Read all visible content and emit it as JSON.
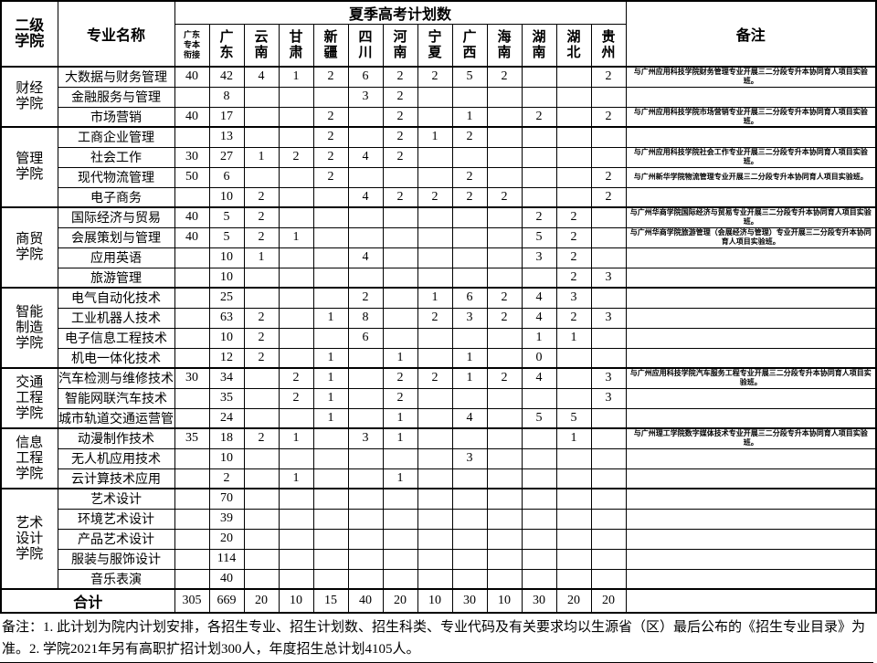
{
  "header": {
    "college_col": "二级学院",
    "major_col": "专业名称",
    "plan_group": "夏季高考计划数",
    "remark_col": "备注",
    "province_cols": [
      "广东专本衔接",
      "广东",
      "云南",
      "甘肃",
      "新疆",
      "四川",
      "河南",
      "宁夏",
      "广西",
      "海南",
      "湖南",
      "湖北",
      "贵州"
    ]
  },
  "colleges": [
    {
      "name": "财经学院",
      "majors": [
        {
          "name": "大数据与财务管理",
          "values": [
            "40",
            "42",
            "4",
            "1",
            "2",
            "6",
            "2",
            "2",
            "5",
            "2",
            "",
            "",
            "2"
          ],
          "remark": "与广州应用科技学院财务管理专业开展三二分段专升本协同育人项目实验班。"
        },
        {
          "name": "金融服务与管理",
          "values": [
            "",
            "8",
            "",
            "",
            "",
            "3",
            "2",
            "",
            "",
            "",
            "",
            "",
            ""
          ],
          "remark": ""
        },
        {
          "name": "市场营销",
          "values": [
            "40",
            "17",
            "",
            "",
            "2",
            "",
            "2",
            "",
            "1",
            "",
            "2",
            "",
            "2"
          ],
          "remark": "与广州应用科技学院市场营销专业开展三二分段专升本协同育人项目实验班。"
        }
      ]
    },
    {
      "name": "管理学院",
      "majors": [
        {
          "name": "工商企业管理",
          "values": [
            "",
            "13",
            "",
            "",
            "2",
            "",
            "2",
            "1",
            "2",
            "",
            "",
            "",
            ""
          ],
          "remark": ""
        },
        {
          "name": "社会工作",
          "values": [
            "30",
            "27",
            "1",
            "2",
            "2",
            "4",
            "2",
            "",
            "",
            "",
            "",
            "",
            ""
          ],
          "remark": "与广州应用科技学院社会工作专业开展三二分段专升本协同育人项目实验班。"
        },
        {
          "name": "现代物流管理",
          "values": [
            "50",
            "6",
            "",
            "",
            "2",
            "",
            "",
            "",
            "2",
            "",
            "",
            "",
            "2"
          ],
          "remark": "与广州新华学院物流管理专业开展三二分段专升本协同育人项目实验班。"
        },
        {
          "name": "电子商务",
          "values": [
            "",
            "10",
            "2",
            "",
            "",
            "4",
            "2",
            "2",
            "2",
            "2",
            "",
            "",
            "2"
          ],
          "remark": ""
        }
      ]
    },
    {
      "name": "商贸学院",
      "majors": [
        {
          "name": "国际经济与贸易",
          "values": [
            "40",
            "5",
            "2",
            "",
            "",
            "",
            "",
            "",
            "",
            "",
            "2",
            "2",
            ""
          ],
          "remark": "与广州华商学院国际经济与贸易专业开展三二分段专升本协同育人项目实验班。"
        },
        {
          "name": "会展策划与管理",
          "values": [
            "40",
            "5",
            "2",
            "1",
            "",
            "",
            "",
            "",
            "",
            "",
            "5",
            "2",
            ""
          ],
          "remark": "与广州华商学院旅游管理（会展经济与管理）专业开展三二分段专升本协同育人项目实验班。"
        },
        {
          "name": "应用英语",
          "values": [
            "",
            "10",
            "1",
            "",
            "",
            "4",
            "",
            "",
            "",
            "",
            "3",
            "2",
            ""
          ],
          "remark": ""
        },
        {
          "name": "旅游管理",
          "values": [
            "",
            "10",
            "",
            "",
            "",
            "",
            "",
            "",
            "",
            "",
            "",
            "2",
            "3"
          ],
          "remark": ""
        }
      ]
    },
    {
      "name": "智能制造学院",
      "majors": [
        {
          "name": "电气自动化技术",
          "values": [
            "",
            "25",
            "",
            "",
            "",
            "2",
            "",
            "1",
            "6",
            "2",
            "4",
            "3",
            ""
          ],
          "remark": ""
        },
        {
          "name": "工业机器人技术",
          "values": [
            "",
            "63",
            "2",
            "",
            "1",
            "8",
            "",
            "2",
            "3",
            "2",
            "4",
            "2",
            "3"
          ],
          "remark": ""
        },
        {
          "name": "电子信息工程技术",
          "values": [
            "",
            "10",
            "2",
            "",
            "",
            "6",
            "",
            "",
            "",
            "",
            "1",
            "1",
            ""
          ],
          "remark": ""
        },
        {
          "name": "机电一体化技术",
          "values": [
            "",
            "12",
            "2",
            "",
            "1",
            "",
            "1",
            "",
            "1",
            "",
            "0",
            "",
            ""
          ],
          "remark": ""
        }
      ]
    },
    {
      "name": "交通工程学院",
      "majors": [
        {
          "name": "汽车检测与维修技术",
          "values": [
            "30",
            "34",
            "",
            "2",
            "1",
            "",
            "2",
            "2",
            "1",
            "2",
            "4",
            "",
            "3"
          ],
          "remark": "与广州应用科技学院汽车服务工程专业开展三二分段专升本协同育人项目实验班。"
        },
        {
          "name": "智能网联汽车技术",
          "values": [
            "",
            "35",
            "",
            "2",
            "1",
            "",
            "2",
            "",
            "",
            "",
            "",
            "",
            "3"
          ],
          "remark": ""
        },
        {
          "name": "城市轨道交通运营管",
          "values": [
            "",
            "24",
            "",
            "",
            "1",
            "",
            "1",
            "",
            "4",
            "",
            "5",
            "5",
            ""
          ],
          "remark": ""
        }
      ]
    },
    {
      "name": "信息工程学院",
      "majors": [
        {
          "name": "动漫制作技术",
          "values": [
            "35",
            "18",
            "2",
            "1",
            "",
            "3",
            "1",
            "",
            "",
            "",
            "",
            "1",
            ""
          ],
          "remark": "与广州理工学院数字媒体技术专业开展三二分段专升本协同育人项目实验班。"
        },
        {
          "name": "无人机应用技术",
          "values": [
            "",
            "10",
            "",
            "",
            "",
            "",
            "",
            "",
            "3",
            "",
            "",
            "",
            ""
          ],
          "remark": ""
        },
        {
          "name": "云计算技术应用",
          "values": [
            "",
            "2",
            "",
            "1",
            "",
            "",
            "1",
            "",
            "",
            "",
            "",
            "",
            ""
          ],
          "remark": ""
        }
      ]
    },
    {
      "name": "艺术设计学院",
      "majors": [
        {
          "name": "艺术设计",
          "values": [
            "",
            "70",
            "",
            "",
            "",
            "",
            "",
            "",
            "",
            "",
            "",
            "",
            ""
          ],
          "remark": ""
        },
        {
          "name": "环境艺术设计",
          "values": [
            "",
            "39",
            "",
            "",
            "",
            "",
            "",
            "",
            "",
            "",
            "",
            "",
            ""
          ],
          "remark": ""
        },
        {
          "name": "产品艺术设计",
          "values": [
            "",
            "20",
            "",
            "",
            "",
            "",
            "",
            "",
            "",
            "",
            "",
            "",
            ""
          ],
          "remark": ""
        },
        {
          "name": "服装与服饰设计",
          "values": [
            "",
            "114",
            "",
            "",
            "",
            "",
            "",
            "",
            "",
            "",
            "",
            "",
            ""
          ],
          "remark": ""
        },
        {
          "name": "音乐表演",
          "values": [
            "",
            "40",
            "",
            "",
            "",
            "",
            "",
            "",
            "",
            "",
            "",
            "",
            ""
          ],
          "remark": ""
        }
      ]
    }
  ],
  "total": {
    "label": "合计",
    "values": [
      "305",
      "669",
      "20",
      "10",
      "15",
      "40",
      "20",
      "10",
      "30",
      "10",
      "30",
      "20",
      "20"
    ]
  },
  "footer": {
    "notes": "备注：1. 此计划为院内计划安排，各招生专业、招生计划数、招生科类、专业代码及有关要求均以生源省（区）最后公布的《招生专业目录》为准。2. 学院2021年另有高职扩招计划300人，年度招生总计划4105人。"
  }
}
